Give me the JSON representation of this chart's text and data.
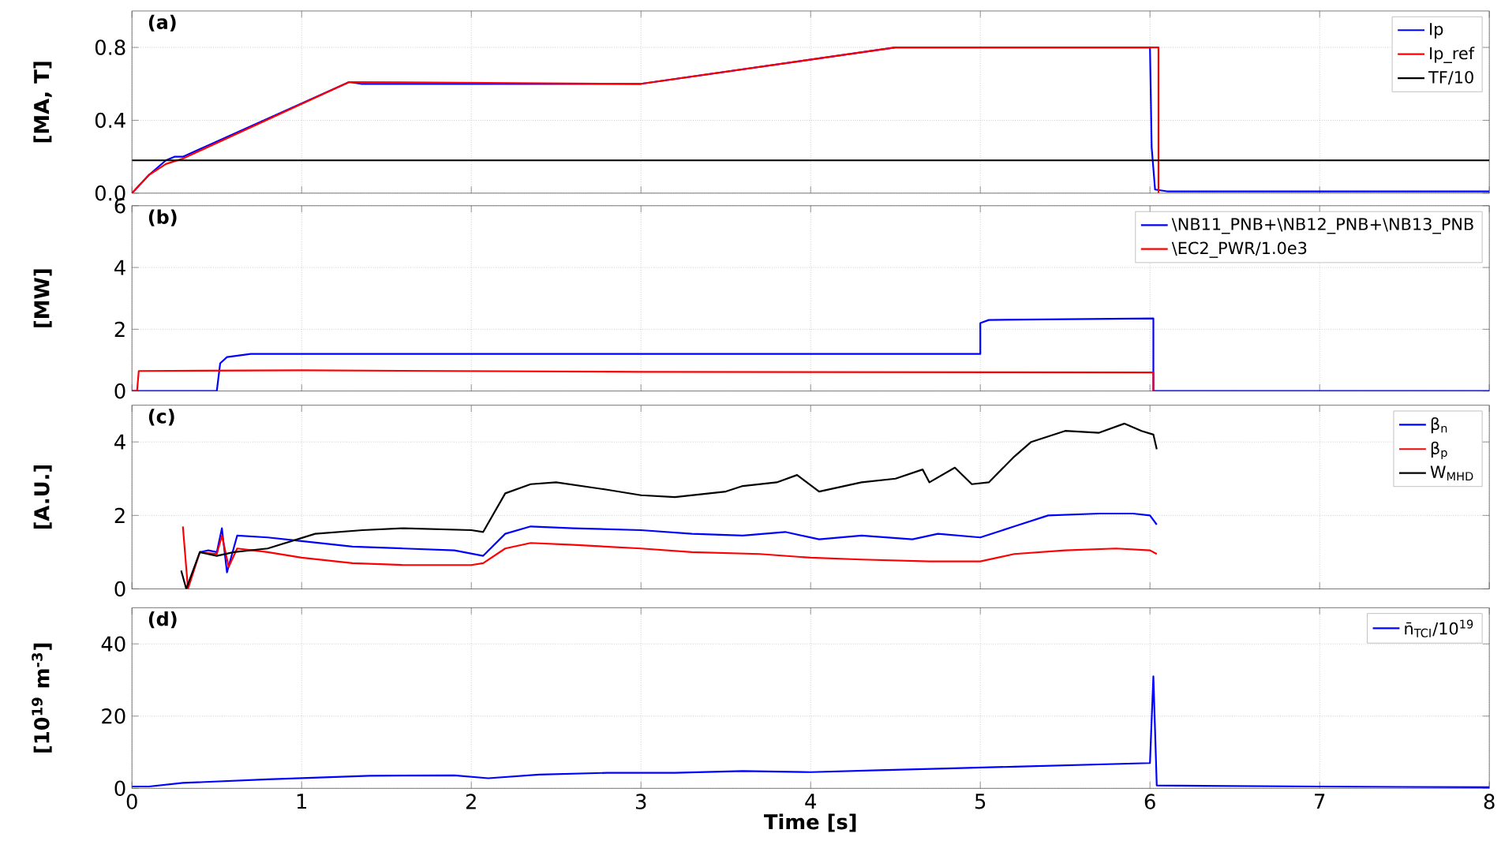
{
  "chart_data": [
    {
      "type": "line",
      "annotations": [
        "(a)"
      ],
      "ylabel": "[MA, T]",
      "xlim": [
        0,
        8
      ],
      "xticks": [
        0,
        1,
        2,
        3,
        4,
        5,
        6,
        7,
        8
      ],
      "ylim": [
        0,
        1.0
      ],
      "yticks": [
        {
          "value": 0,
          "label": "0.0"
        },
        {
          "value": 0.4,
          "label": "0.4"
        },
        {
          "value": 0.8,
          "label": "0.8"
        }
      ],
      "grid": true,
      "legend": "top right",
      "tick_labels": "y",
      "marker": "none",
      "series": [
        {
          "name": "Ip",
          "color": "#0000ff",
          "x": [
            0,
            0.1,
            0.2,
            0.25,
            0.3,
            1.28,
            1.35,
            3.0,
            4.5,
            6.0,
            6.01,
            6.03,
            6.1,
            7,
            8
          ],
          "values": [
            0,
            0.1,
            0.18,
            0.2,
            0.2,
            0.61,
            0.6,
            0.6,
            0.8,
            0.8,
            0.25,
            0.02,
            0.01,
            0.01,
            0.01
          ]
        },
        {
          "name": "Ip_ref",
          "color": "#ff0000",
          "x": [
            0,
            0.1,
            0.2,
            0.3,
            1.28,
            3.0,
            4.5,
            6.05,
            6.05
          ],
          "values": [
            0,
            0.1,
            0.16,
            0.19,
            0.61,
            0.6,
            0.8,
            0.8,
            0
          ]
        },
        {
          "name": "TF/10",
          "color": "#000000",
          "x": [
            0,
            8
          ],
          "values": [
            0.18,
            0.18
          ]
        }
      ]
    },
    {
      "type": "line",
      "annotations": [
        "(b)"
      ],
      "ylabel": "[MW]",
      "xlim": [
        0,
        8
      ],
      "xticks": [
        0,
        1,
        2,
        3,
        4,
        5,
        6,
        7,
        8
      ],
      "ylim": [
        0,
        6
      ],
      "yticks": [
        0,
        2,
        4,
        6
      ],
      "grid": true,
      "legend": "top right",
      "tick_labels": "y",
      "marker": "none",
      "series": [
        {
          "name": "\\NB11_PNB+\\NB12_PNB+\\NB13_PNB",
          "color": "#0000ff",
          "x": [
            0,
            0.5,
            0.52,
            0.56,
            0.7,
            5.0,
            5.0,
            5.05,
            6.02,
            6.02,
            8
          ],
          "values": [
            0,
            0,
            0.9,
            1.1,
            1.2,
            1.2,
            2.2,
            2.3,
            2.35,
            0,
            0
          ]
        },
        {
          "name": "\\EC2_PWR/1.0e3",
          "color": "#ff0000",
          "x": [
            0,
            0.03,
            0.04,
            1.0,
            3.0,
            6.02,
            6.02
          ],
          "values": [
            0,
            0,
            0.65,
            0.67,
            0.62,
            0.6,
            0
          ]
        }
      ]
    },
    {
      "type": "line",
      "annotations": [
        "(c)"
      ],
      "ylabel": "[A.U.]",
      "xlim": [
        0,
        8
      ],
      "xticks": [
        0,
        1,
        2,
        3,
        4,
        5,
        6,
        7,
        8
      ],
      "ylim": [
        0,
        5
      ],
      "yticks": [
        0,
        2,
        4
      ],
      "grid": true,
      "legend": "top right",
      "tick_labels": "y",
      "marker": "none",
      "series": [
        {
          "name": "β$_{n}$",
          "color": "#0000ff",
          "x": [
            0.4,
            0.45,
            0.5,
            0.53,
            0.56,
            0.62,
            0.8,
            1.0,
            1.3,
            1.6,
            1.9,
            2.07,
            2.2,
            2.35,
            2.6,
            3.0,
            3.3,
            3.6,
            3.85,
            4.05,
            4.3,
            4.6,
            4.75,
            5.0,
            5.2,
            5.4,
            5.7,
            5.9,
            6.0,
            6.04
          ],
          "values": [
            1.0,
            1.05,
            1.0,
            1.65,
            0.45,
            1.45,
            1.4,
            1.3,
            1.15,
            1.1,
            1.05,
            0.9,
            1.5,
            1.7,
            1.65,
            1.6,
            1.5,
            1.45,
            1.55,
            1.35,
            1.45,
            1.35,
            1.5,
            1.4,
            1.7,
            2.0,
            2.05,
            2.05,
            2.0,
            1.75
          ]
        },
        {
          "name": "β$_{p}$",
          "color": "#ff0000",
          "x": [
            0.3,
            0.33,
            0.4,
            0.5,
            0.53,
            0.57,
            0.62,
            0.8,
            1.0,
            1.3,
            1.6,
            2.0,
            2.07,
            2.2,
            2.35,
            2.6,
            3.0,
            3.3,
            3.7,
            4.0,
            4.3,
            4.7,
            5.0,
            5.2,
            5.5,
            5.8,
            6.0,
            6.04
          ],
          "values": [
            1.7,
            0,
            1.0,
            0.95,
            1.45,
            0.6,
            1.1,
            1.0,
            0.85,
            0.7,
            0.65,
            0.65,
            0.7,
            1.1,
            1.25,
            1.2,
            1.1,
            1.0,
            0.95,
            0.85,
            0.8,
            0.75,
            0.75,
            0.95,
            1.05,
            1.1,
            1.05,
            0.95
          ]
        },
        {
          "name": "W$_{MHD}$",
          "color": "#000000",
          "x": [
            0.29,
            0.32,
            0.4,
            0.5,
            0.6,
            0.8,
            1.08,
            1.36,
            1.6,
            2.0,
            2.07,
            2.2,
            2.35,
            2.5,
            2.8,
            3.0,
            3.2,
            3.5,
            3.6,
            3.8,
            3.92,
            4.05,
            4.3,
            4.5,
            4.66,
            4.7,
            4.85,
            4.95,
            5.05,
            5.2,
            5.3,
            5.5,
            5.7,
            5.85,
            5.95,
            6.02,
            6.04
          ],
          "values": [
            0.5,
            0,
            1.0,
            0.9,
            1.0,
            1.1,
            1.5,
            1.6,
            1.65,
            1.6,
            1.55,
            2.6,
            2.85,
            2.9,
            2.7,
            2.55,
            2.5,
            2.65,
            2.8,
            2.9,
            3.1,
            2.65,
            2.9,
            3.0,
            3.25,
            2.9,
            3.3,
            2.85,
            2.9,
            3.6,
            4.0,
            4.3,
            4.25,
            4.5,
            4.3,
            4.2,
            3.8
          ]
        }
      ]
    },
    {
      "type": "line",
      "annotations": [
        "(d)"
      ],
      "ylabel": "[10$^{19}$ m$^{-3}$]",
      "xlabel": "Time [s]",
      "xlim": [
        0,
        8
      ],
      "xticks": [
        0,
        1,
        2,
        3,
        4,
        5,
        6,
        7,
        8
      ],
      "ylim": [
        0,
        50
      ],
      "yticks": [
        0,
        20,
        40
      ],
      "grid": true,
      "legend": "top right",
      "marker": "none",
      "series": [
        {
          "name": "n̄$_{TCI}$/10$^{19}$",
          "color": "#0000ff",
          "x": [
            0,
            0.1,
            0.3,
            0.8,
            1.1,
            1.4,
            1.9,
            2.1,
            2.4,
            2.8,
            3.2,
            3.6,
            4.0,
            4.4,
            4.8,
            5.2,
            5.6,
            6.0,
            6.02,
            6.04,
            7,
            8
          ],
          "values": [
            0.5,
            0.5,
            1.5,
            2.5,
            3,
            3.5,
            3.6,
            2.8,
            3.8,
            4.3,
            4.3,
            4.8,
            4.5,
            5,
            5.5,
            6,
            6.5,
            7,
            31,
            0.8,
            0.5,
            0.3
          ]
        }
      ]
    }
  ]
}
